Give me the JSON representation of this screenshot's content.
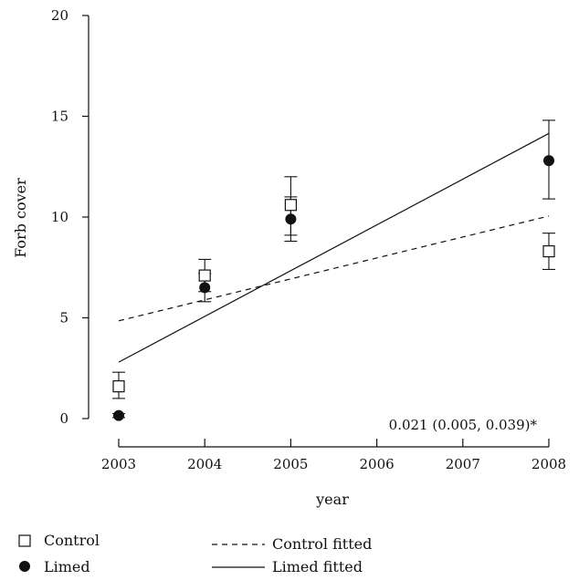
{
  "chart_data": {
    "type": "scatter",
    "xlabel": "year",
    "ylabel": "Forb cover",
    "xlim": [
      2003,
      2008
    ],
    "ylim": [
      0,
      20
    ],
    "x_ticks": [
      "2003",
      "2004",
      "2005",
      "2006",
      "2007",
      "2008"
    ],
    "y_ticks": [
      "0",
      "5",
      "10",
      "15",
      "20"
    ],
    "grid": false,
    "legend_position": "bottom-left",
    "series": [
      {
        "name": "Control",
        "marker": "open-square",
        "points": [
          {
            "x": 2003,
            "y": 1.6,
            "err_low": 1.0,
            "err_high": 2.3
          },
          {
            "x": 2004,
            "y": 7.1,
            "err_low": 6.3,
            "err_high": 7.9
          },
          {
            "x": 2005,
            "y": 10.6,
            "err_low": 9.1,
            "err_high": 12.0
          },
          {
            "x": 2008,
            "y": 8.3,
            "err_low": 7.4,
            "err_high": 9.2
          }
        ]
      },
      {
        "name": "Limed",
        "marker": "filled-circle",
        "points": [
          {
            "x": 2003,
            "y": 0.15,
            "err_low": 0.05,
            "err_high": 0.25
          },
          {
            "x": 2004,
            "y": 6.5,
            "err_low": 5.8,
            "err_high": 7.2
          },
          {
            "x": 2005,
            "y": 9.9,
            "err_low": 8.8,
            "err_high": 11.0
          },
          {
            "x": 2008,
            "y": 12.8,
            "err_low": 10.9,
            "err_high": 14.8
          }
        ]
      }
    ],
    "fitted_lines": [
      {
        "name": "Control fitted",
        "style": "dashed",
        "x": [
          2003,
          2008
        ],
        "y": [
          4.85,
          10.05
        ]
      },
      {
        "name": "Limed fitted",
        "style": "solid",
        "x": [
          2003,
          2008
        ],
        "y": [
          2.8,
          14.15
        ]
      }
    ],
    "annotation": "0.021 (0.005, 0.039)*",
    "colors": {
      "ink": "#111111",
      "background": "#ffffff"
    }
  }
}
